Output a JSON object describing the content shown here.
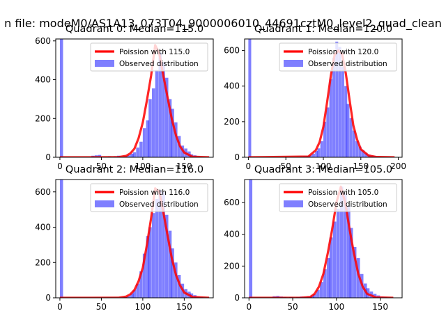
{
  "figure": {
    "title": "n file: modeM0/AS1A13_073T04_9000006010_44691cztM0_level2_quad_clean"
  },
  "chart_data": [
    {
      "type": "bar",
      "title": "Quadrant 0: Median=115.0",
      "xlim": [
        -5,
        185
      ],
      "ylim": [
        0,
        610
      ],
      "xticks": [
        0,
        50,
        100,
        150
      ],
      "yticks": [
        0,
        200,
        400,
        600
      ],
      "legend_position": "top-right",
      "series": [
        {
          "name": "Observed distribution",
          "color": "#0000ff",
          "opacity": 0.5,
          "bin_width": 3.8,
          "bins": [
            [
              0,
              620
            ],
            [
              38,
              8
            ],
            [
              42,
              10
            ],
            [
              46,
              12
            ],
            [
              58,
              5
            ],
            [
              65,
              5
            ],
            [
              69,
              8
            ],
            [
              77,
              5
            ],
            [
              81,
              10
            ],
            [
              85,
              18
            ],
            [
              88,
              26
            ],
            [
              92,
              50
            ],
            [
              96,
              80
            ],
            [
              100,
              150
            ],
            [
              104,
              190
            ],
            [
              107,
              300
            ],
            [
              111,
              355
            ],
            [
              115,
              450
            ],
            [
              119,
              540
            ],
            [
              123,
              490
            ],
            [
              127,
              410
            ],
            [
              131,
              300
            ],
            [
              134,
              250
            ],
            [
              138,
              180
            ],
            [
              142,
              110
            ],
            [
              146,
              60
            ],
            [
              150,
              45
            ],
            [
              154,
              30
            ],
            [
              157,
              15
            ],
            [
              161,
              10
            ],
            [
              165,
              5
            ],
            [
              169,
              2
            ]
          ]
        },
        {
          "name": "Poission with 115.0",
          "color": "#ff0000",
          "x": [
            0,
            70,
            80,
            85,
            90,
            95,
            100,
            105,
            110,
            115,
            120,
            125,
            130,
            135,
            140,
            145,
            150,
            160,
            180
          ],
          "y": [
            0,
            0.5,
            7,
            20,
            45,
            99,
            179,
            293,
            420,
            578,
            532,
            417,
            306,
            198,
            113,
            56,
            24,
            3,
            0
          ]
        }
      ]
    },
    {
      "type": "bar",
      "title": "Quadrant 1: Median=120.0",
      "xlim": [
        -5,
        205
      ],
      "ylim": [
        0,
        665
      ],
      "xticks": [
        0,
        50,
        100,
        150,
        200
      ],
      "yticks": [
        0,
        200,
        400,
        600
      ],
      "legend_position": "top-right",
      "series": [
        {
          "name": "Observed distribution",
          "color": "#0000ff",
          "opacity": 0.5,
          "bin_width": 3.8,
          "bins": [
            [
              0,
              665
            ],
            [
              65,
              3
            ],
            [
              69,
              5
            ],
            [
              73,
              6
            ],
            [
              77,
              8
            ],
            [
              81,
              12
            ],
            [
              85,
              20
            ],
            [
              89,
              35
            ],
            [
              92,
              50
            ],
            [
              96,
              90
            ],
            [
              100,
              200
            ],
            [
              104,
              280
            ],
            [
              108,
              440
            ],
            [
              112,
              560
            ],
            [
              116,
              650
            ],
            [
              120,
              620
            ],
            [
              124,
              510
            ],
            [
              128,
              400
            ],
            [
              131,
              300
            ],
            [
              135,
              220
            ],
            [
              139,
              150
            ],
            [
              143,
              90
            ],
            [
              147,
              60
            ],
            [
              151,
              40
            ],
            [
              155,
              25
            ],
            [
              159,
              15
            ],
            [
              163,
              10
            ],
            [
              167,
              6
            ],
            [
              171,
              4
            ]
          ]
        },
        {
          "name": "Poission with 120.0",
          "color": "#ff0000",
          "x": [
            0,
            80,
            90,
            95,
            100,
            105,
            110,
            115,
            120,
            125,
            130,
            135,
            140,
            145,
            150,
            160,
            170,
            195
          ],
          "y": [
            0,
            4,
            40,
            85,
            170,
            310,
            460,
            575,
            600,
            580,
            470,
            320,
            180,
            100,
            45,
            10,
            2,
            0
          ]
        }
      ]
    },
    {
      "type": "bar",
      "title": "Quadrant 2: Median=116.0",
      "xlim": [
        -5,
        185
      ],
      "ylim": [
        0,
        670
      ],
      "xticks": [
        0,
        50,
        100,
        150
      ],
      "yticks": [
        0,
        200,
        400,
        600
      ],
      "legend_position": "top-right",
      "series": [
        {
          "name": "Observed distribution",
          "color": "#0000ff",
          "opacity": 0.5,
          "bin_width": 3.8,
          "bins": [
            [
              0,
              670
            ],
            [
              77,
              5
            ],
            [
              81,
              12
            ],
            [
              85,
              25
            ],
            [
              88,
              45
            ],
            [
              92,
              80
            ],
            [
              96,
              150
            ],
            [
              100,
              250
            ],
            [
              104,
              350
            ],
            [
              107,
              400
            ],
            [
              111,
              480
            ],
            [
              115,
              560
            ],
            [
              119,
              610
            ],
            [
              123,
              600
            ],
            [
              127,
              470
            ],
            [
              131,
              380
            ],
            [
              134,
              280
            ],
            [
              138,
              200
            ],
            [
              142,
              130
            ],
            [
              146,
              80
            ],
            [
              150,
              50
            ],
            [
              154,
              35
            ],
            [
              157,
              25
            ],
            [
              161,
              15
            ],
            [
              165,
              8
            ],
            [
              169,
              5
            ]
          ]
        },
        {
          "name": "Poission with 116.0",
          "color": "#ff0000",
          "x": [
            0,
            70,
            80,
            85,
            90,
            95,
            100,
            105,
            110,
            115,
            120,
            125,
            130,
            135,
            140,
            145,
            150,
            160,
            180
          ],
          "y": [
            0,
            0.5,
            7,
            20,
            45,
            95,
            170,
            300,
            450,
            620,
            600,
            480,
            350,
            225,
            130,
            70,
            30,
            5,
            0
          ]
        }
      ]
    },
    {
      "type": "bar",
      "title": "Quadrant 3: Median=105.0",
      "xlim": [
        -5,
        175
      ],
      "ylim": [
        0,
        745
      ],
      "xticks": [
        0,
        50,
        100,
        150
      ],
      "yticks": [
        0,
        200,
        400,
        600
      ],
      "legend_position": "top-right",
      "series": [
        {
          "name": "Observed distribution",
          "color": "#0000ff",
          "opacity": 0.5,
          "bin_width": 3.8,
          "bins": [
            [
              0,
              745
            ],
            [
              27,
              10
            ],
            [
              31,
              12
            ],
            [
              35,
              8
            ],
            [
              39,
              6
            ],
            [
              46,
              5
            ],
            [
              54,
              5
            ],
            [
              58,
              8
            ],
            [
              62,
              6
            ],
            [
              66,
              10
            ],
            [
              70,
              15
            ],
            [
              73,
              25
            ],
            [
              77,
              50
            ],
            [
              81,
              100
            ],
            [
              85,
              180
            ],
            [
              89,
              250
            ],
            [
              92,
              380
            ],
            [
              96,
              480
            ],
            [
              100,
              560
            ],
            [
              104,
              700
            ],
            [
              108,
              660
            ],
            [
              112,
              580
            ],
            [
              115,
              440
            ],
            [
              119,
              320
            ],
            [
              123,
              250
            ],
            [
              127,
              150
            ],
            [
              131,
              90
            ],
            [
              134,
              60
            ],
            [
              138,
              40
            ],
            [
              142,
              25
            ],
            [
              146,
              15
            ],
            [
              150,
              8
            ],
            [
              154,
              5
            ]
          ]
        },
        {
          "name": "Poission with 105.0",
          "color": "#ff0000",
          "x": [
            0,
            60,
            70,
            75,
            80,
            85,
            90,
            95,
            100,
            105,
            110,
            115,
            120,
            125,
            130,
            135,
            145,
            165
          ],
          "y": [
            0,
            0.5,
            5,
            25,
            70,
            150,
            280,
            430,
            600,
            700,
            600,
            430,
            280,
            150,
            70,
            25,
            3,
            0
          ]
        }
      ]
    }
  ]
}
